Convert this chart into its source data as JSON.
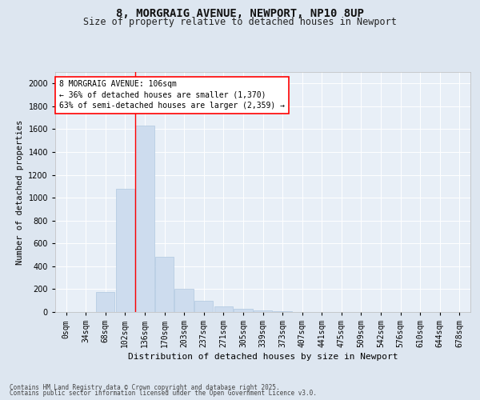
{
  "title1": "8, MORGRAIG AVENUE, NEWPORT, NP10 8UP",
  "title2": "Size of property relative to detached houses in Newport",
  "xlabel": "Distribution of detached houses by size in Newport",
  "ylabel": "Number of detached properties",
  "categories": [
    "0sqm",
    "34sqm",
    "68sqm",
    "102sqm",
    "136sqm",
    "170sqm",
    "203sqm",
    "237sqm",
    "271sqm",
    "305sqm",
    "339sqm",
    "373sqm",
    "407sqm",
    "441sqm",
    "475sqm",
    "509sqm",
    "542sqm",
    "576sqm",
    "610sqm",
    "644sqm",
    "678sqm"
  ],
  "values": [
    0,
    0,
    175,
    1080,
    1630,
    480,
    205,
    100,
    50,
    30,
    15,
    5,
    2,
    0,
    0,
    0,
    0,
    0,
    0,
    0,
    0
  ],
  "bar_color": "#cddcee",
  "bar_edge_color": "#b0c8e0",
  "ylim": [
    0,
    2100
  ],
  "yticks": [
    0,
    200,
    400,
    600,
    800,
    1000,
    1200,
    1400,
    1600,
    1800,
    2000
  ],
  "red_line_x": 3.5,
  "annotation_text_line1": "8 MORGRAIG AVENUE: 106sqm",
  "annotation_text_line2": "← 36% of detached houses are smaller (1,370)",
  "annotation_text_line3": "63% of semi-detached houses are larger (2,359) →",
  "footer1": "Contains HM Land Registry data © Crown copyright and database right 2025.",
  "footer2": "Contains public sector information licensed under the Open Government Licence v3.0.",
  "background_color": "#dde6f0",
  "plot_bg_color": "#e8eff7",
  "grid_color": "#ffffff",
  "title_fontsize": 10,
  "subtitle_fontsize": 8.5,
  "tick_fontsize": 7,
  "ylabel_fontsize": 7.5,
  "xlabel_fontsize": 8,
  "annotation_fontsize": 7,
  "footer_fontsize": 5.5
}
